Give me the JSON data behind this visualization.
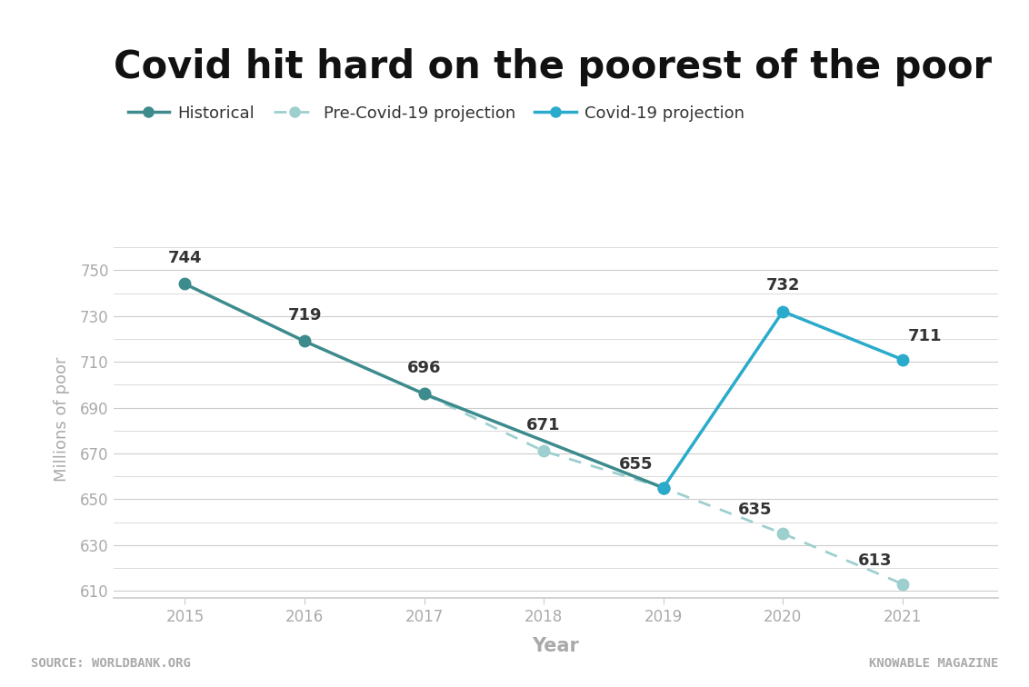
{
  "title": "Covid hit hard on the poorest of the poor",
  "xlabel": "Year",
  "ylabel": "Millions of poor",
  "background_color": "#ffffff",
  "historical": {
    "years": [
      2015,
      2016,
      2017,
      2019
    ],
    "values": [
      744,
      719,
      696,
      655
    ],
    "color": "#3d8b8d",
    "linewidth": 2.5,
    "markersize": 9
  },
  "pre_covid": {
    "years": [
      2017,
      2018,
      2019,
      2020,
      2021
    ],
    "values": [
      696,
      671,
      655,
      635,
      613
    ],
    "color": "#9dcfcf",
    "linewidth": 2.0,
    "markersize": 9
  },
  "covid_proj": {
    "years": [
      2019,
      2020,
      2021
    ],
    "values": [
      655,
      732,
      711
    ],
    "color": "#2aabcc",
    "linewidth": 2.5,
    "markersize": 9
  },
  "ylim": [
    607,
    763
  ],
  "yticks": [
    610,
    630,
    650,
    670,
    690,
    710,
    730,
    750
  ],
  "xticks": [
    2015,
    2016,
    2017,
    2018,
    2019,
    2020,
    2021
  ],
  "source_text": "SOURCE: WORLDBANK.ORG",
  "credit_text": "KNOWABLE MAGAZINE",
  "legend_labels": [
    "Historical",
    "Pre-Covid-19 projection",
    "Covid-19 projection"
  ],
  "title_fontsize": 30,
  "axis_label_fontsize": 14,
  "tick_fontsize": 12,
  "annotation_fontsize": 13,
  "source_fontsize": 10,
  "grid_color": "#cccccc",
  "tick_color": "#aaaaaa",
  "label_color": "#333333",
  "top_bar_color": "#c8e0e0"
}
